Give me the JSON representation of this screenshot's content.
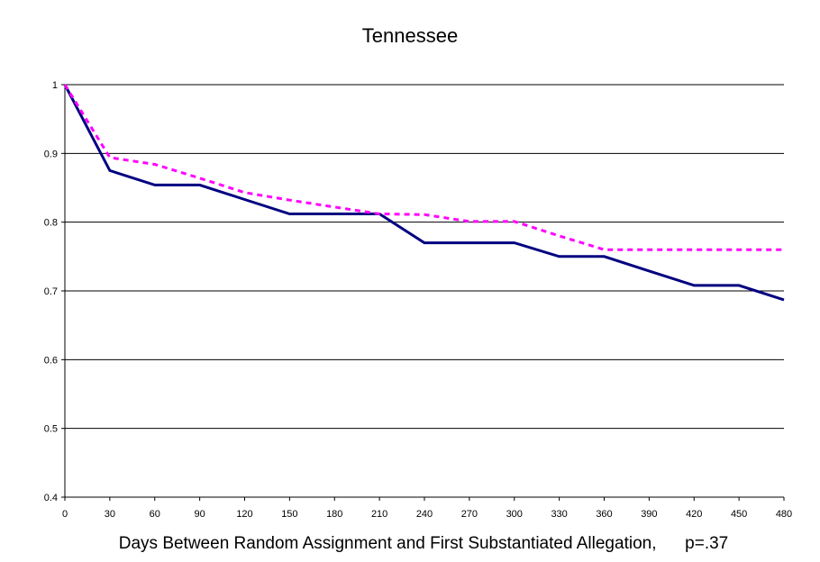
{
  "chart_data": {
    "type": "line",
    "title": "Tennessee",
    "xlabel": "Days Between Random Assignment and First Substantiated Allegation,      p=.37",
    "ylabel": "",
    "xlim": [
      0,
      480
    ],
    "ylim": [
      0.4,
      1
    ],
    "xticks": [
      "0",
      "30",
      "60",
      "90",
      "120",
      "150",
      "180",
      "210",
      "240",
      "270",
      "300",
      "330",
      "360",
      "390",
      "420",
      "450",
      "480"
    ],
    "yticks": [
      "0.4",
      "0.5",
      "0.6",
      "0.7",
      "0.8",
      "0.9",
      "1"
    ],
    "grid": "horizontal",
    "legend": "none",
    "series": [
      {
        "color": "#000080",
        "style": "solid",
        "x": [
          0,
          30,
          60,
          90,
          120,
          150,
          180,
          210,
          240,
          270,
          300,
          330,
          360,
          390,
          420,
          450,
          480
        ],
        "values": [
          1.0,
          0.875,
          0.854,
          0.854,
          0.833,
          0.812,
          0.812,
          0.812,
          0.77,
          0.77,
          0.77,
          0.75,
          0.75,
          0.729,
          0.708,
          0.708,
          0.687
        ]
      },
      {
        "color": "#ff00ff",
        "style": "dashed",
        "x": [
          0,
          30,
          60,
          90,
          120,
          150,
          180,
          210,
          240,
          270,
          300,
          330,
          360,
          390,
          420,
          450,
          480
        ],
        "values": [
          1.0,
          0.894,
          0.884,
          0.864,
          0.843,
          0.832,
          0.822,
          0.812,
          0.811,
          0.801,
          0.801,
          0.78,
          0.76,
          0.76,
          0.76,
          0.76,
          0.76
        ]
      }
    ]
  }
}
